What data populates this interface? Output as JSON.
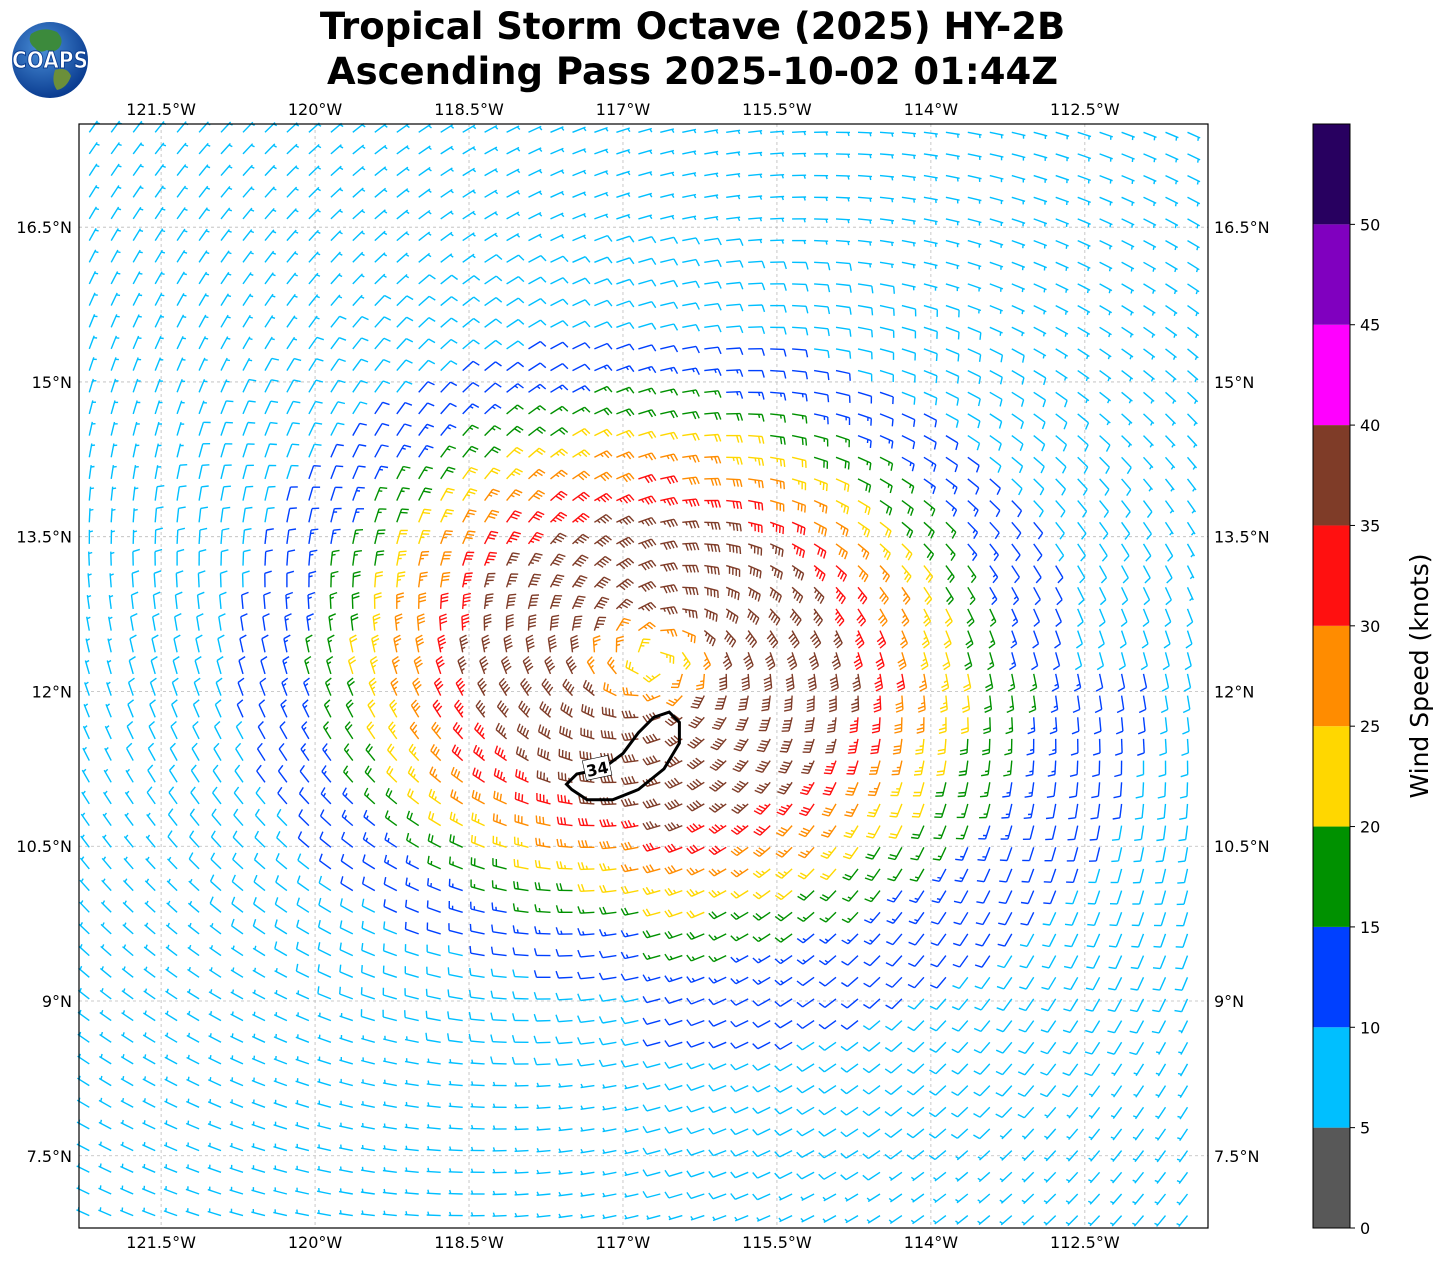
{
  "title": {
    "line1": "Tropical Storm Octave (2025) HY-2B",
    "line2": "Ascending Pass 2025-10-02 01:44Z"
  },
  "logo": {
    "text": "COAPS",
    "icon": "globe-icon"
  },
  "map": {
    "lon_range": [
      -122.3,
      -111.3
    ],
    "lat_range": [
      6.8,
      17.5
    ],
    "x_ticks": [
      {
        "lon": -121.5,
        "label": "121.5°W"
      },
      {
        "lon": -120.0,
        "label": "120°W"
      },
      {
        "lon": -118.5,
        "label": "118.5°W"
      },
      {
        "lon": -117.0,
        "label": "117°W"
      },
      {
        "lon": -115.5,
        "label": "115.5°W"
      },
      {
        "lon": -114.0,
        "label": "114°W"
      },
      {
        "lon": -112.5,
        "label": "112.5°W"
      }
    ],
    "y_ticks": [
      {
        "lat": 16.5,
        "label": "16.5°N"
      },
      {
        "lat": 15.0,
        "label": "15°N"
      },
      {
        "lat": 13.5,
        "label": "13.5°N"
      },
      {
        "lat": 12.0,
        "label": "12°N"
      },
      {
        "lat": 10.5,
        "label": "10.5°N"
      },
      {
        "lat": 9.0,
        "label": "9°N"
      },
      {
        "lat": 7.5,
        "label": "7.5°N"
      }
    ],
    "gridlines": true,
    "storm_center": {
      "lon": -116.7,
      "lat": 12.3
    },
    "contour": {
      "label": "34",
      "points": [
        [
          -117.5,
          11.05
        ],
        [
          -117.35,
          10.95
        ],
        [
          -117.1,
          10.95
        ],
        [
          -116.85,
          11.05
        ],
        [
          -116.6,
          11.25
        ],
        [
          -116.45,
          11.5
        ],
        [
          -116.45,
          11.7
        ],
        [
          -116.55,
          11.8
        ],
        [
          -116.7,
          11.75
        ],
        [
          -116.85,
          11.6
        ],
        [
          -117.0,
          11.4
        ],
        [
          -117.2,
          11.25
        ],
        [
          -117.45,
          11.2
        ],
        [
          -117.55,
          11.1
        ]
      ]
    }
  },
  "colorbar": {
    "label": "Wind Speed (knots)",
    "ticks": [
      "0",
      "5",
      "10",
      "15",
      "20",
      "25",
      "30",
      "35",
      "40",
      "45",
      "50"
    ],
    "bins": [
      {
        "from": 0,
        "to": 5,
        "color": "#585858"
      },
      {
        "from": 5,
        "to": 10,
        "color": "#00bfff"
      },
      {
        "from": 10,
        "to": 15,
        "color": "#0040ff"
      },
      {
        "from": 15,
        "to": 20,
        "color": "#009100"
      },
      {
        "from": 20,
        "to": 25,
        "color": "#ffd700"
      },
      {
        "from": 25,
        "to": 30,
        "color": "#ff8c00"
      },
      {
        "from": 30,
        "to": 35,
        "color": "#ff1010"
      },
      {
        "from": 35,
        "to": 40,
        "color": "#7f3c28"
      },
      {
        "from": 40,
        "to": 45,
        "color": "#ff00ff"
      },
      {
        "from": 45,
        "to": 50,
        "color": "#8000bf"
      },
      {
        "from": 50,
        "to": 55,
        "color": "#280060"
      }
    ]
  }
}
